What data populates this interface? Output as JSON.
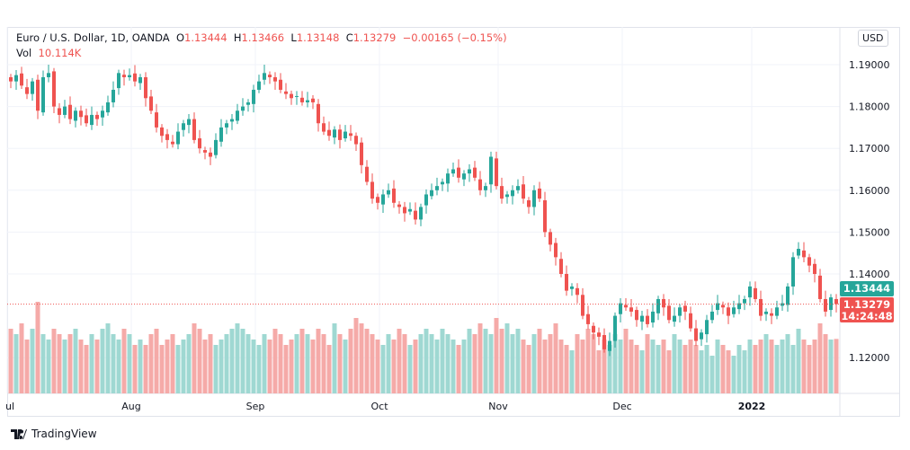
{
  "legend": {
    "symbol": "Euro / U.S. Dollar, 1D, OANDA",
    "o_label": "O",
    "o": "1.13444",
    "h_label": "H",
    "h": "1.13466",
    "l_label": "L",
    "l": "1.13148",
    "c_label": "C",
    "c": "1.13279",
    "change": "−0.00165 (−0.15%)",
    "vol_label": "Vol",
    "vol": "10.114K"
  },
  "currency_button": "USD",
  "price_tags": {
    "open": "1.13444",
    "close": "1.13279",
    "countdown": "14:24:48"
  },
  "brand": "TradingView",
  "colors": {
    "up": "#26a69a",
    "down": "#ef5350",
    "up_vol": "#9fd8d2",
    "down_vol": "#f5aaa8"
  },
  "chart_data": {
    "type": "candlestick",
    "title": "Euro / U.S. Dollar, 1D, OANDA",
    "yticks": [
      "1.19000",
      "1.18000",
      "1.17000",
      "1.16000",
      "1.15000",
      "1.14000",
      "1.12000"
    ],
    "ylim": [
      1.111,
      1.199
    ],
    "xtick_labels": [
      "ul",
      "Aug",
      "Sep",
      "Oct",
      "Nov",
      "Dec",
      "2022"
    ],
    "xtick_index": [
      0,
      23,
      46,
      69,
      91,
      114,
      138
    ],
    "closes": [
      1.186,
      1.1875,
      1.185,
      1.183,
      1.186,
      1.179,
      1.187,
      1.188,
      1.18,
      1.178,
      1.18,
      1.177,
      1.179,
      1.1775,
      1.176,
      1.178,
      1.177,
      1.179,
      1.181,
      1.184,
      1.188,
      1.187,
      1.1875,
      1.186,
      1.187,
      1.182,
      1.179,
      1.175,
      1.173,
      1.172,
      1.171,
      1.174,
      1.176,
      1.177,
      1.172,
      1.17,
      1.169,
      1.168,
      1.172,
      1.175,
      1.176,
      1.177,
      1.179,
      1.18,
      1.181,
      1.184,
      1.186,
      1.188,
      1.187,
      1.186,
      1.184,
      1.183,
      1.182,
      1.1825,
      1.181,
      1.1815,
      1.181,
      1.176,
      1.174,
      1.173,
      1.1745,
      1.172,
      1.174,
      1.173,
      1.171,
      1.166,
      1.162,
      1.158,
      1.157,
      1.159,
      1.16,
      1.157,
      1.156,
      1.1545,
      1.1555,
      1.153,
      1.156,
      1.159,
      1.16,
      1.161,
      1.162,
      1.164,
      1.165,
      1.163,
      1.164,
      1.165,
      1.163,
      1.16,
      1.161,
      1.168,
      1.161,
      1.158,
      1.159,
      1.16,
      1.161,
      1.158,
      1.156,
      1.16,
      1.158,
      1.15,
      1.147,
      1.144,
      1.14,
      1.136,
      1.137,
      1.135,
      1.13,
      1.128,
      1.126,
      1.125,
      1.122,
      1.124,
      1.13,
      1.133,
      1.132,
      1.131,
      1.129,
      1.13,
      1.128,
      1.131,
      1.134,
      1.132,
      1.129,
      1.13,
      1.132,
      1.131,
      1.127,
      1.124,
      1.126,
      1.129,
      1.131,
      1.133,
      1.132,
      1.13,
      1.132,
      1.133,
      1.134,
      1.137,
      1.134,
      1.13,
      1.131,
      1.13,
      1.132,
      1.133,
      1.137,
      1.144,
      1.146,
      1.144,
      1.142,
      1.14,
      1.134,
      1.131,
      1.1344,
      1.1328
    ],
    "volumes_k": [
      12,
      11,
      13,
      10,
      12,
      17,
      11,
      10,
      12,
      11,
      10,
      11,
      12,
      10,
      9,
      11,
      10,
      12,
      13,
      11,
      10,
      12,
      11,
      9,
      10,
      9,
      11,
      12,
      9,
      10,
      11,
      9,
      10,
      11,
      13,
      12,
      10,
      11,
      9,
      10,
      11,
      12,
      13,
      12,
      11,
      10,
      9,
      11,
      10,
      12,
      11,
      9,
      10,
      11,
      12,
      11,
      10,
      12,
      11,
      9,
      13,
      11,
      10,
      12,
      14,
      13,
      12,
      11,
      10,
      9,
      11,
      10,
      12,
      11,
      9,
      10,
      11,
      12,
      11,
      10,
      12,
      11,
      10,
      9,
      10,
      12,
      11,
      13,
      12,
      11,
      14,
      12,
      13,
      11,
      12,
      10,
      9,
      11,
      12,
      10,
      11,
      13,
      10,
      9,
      8,
      11,
      10,
      12,
      11,
      8,
      10,
      9,
      11,
      10,
      12,
      10,
      9,
      8,
      11,
      10,
      9,
      10,
      8,
      11,
      10,
      9,
      10,
      9,
      8,
      9,
      7,
      10,
      9,
      8,
      7,
      9,
      8,
      10,
      9,
      10,
      11,
      10,
      9,
      10,
      11,
      9,
      12,
      10,
      9,
      10,
      13,
      11,
      10,
      10.114
    ]
  }
}
